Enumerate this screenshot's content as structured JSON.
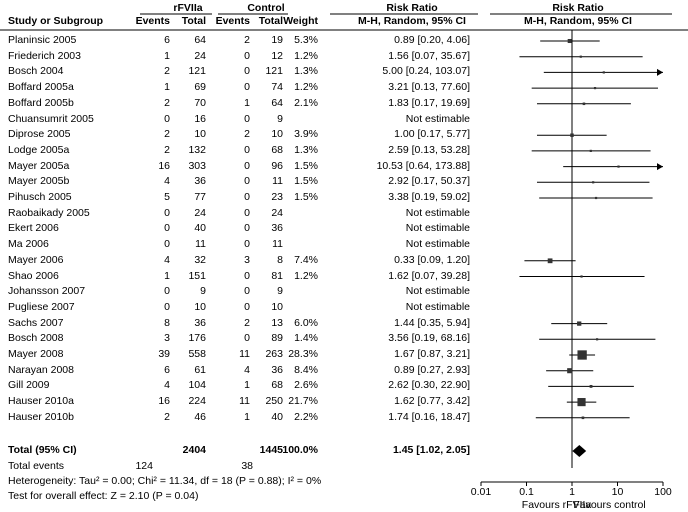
{
  "headers": {
    "group_rfviia": "rFVIIa",
    "group_control": "Control",
    "group_rr_left": "Risk Ratio",
    "group_rr_right": "Risk Ratio",
    "study": "Study or Subgroup",
    "events1": "Events",
    "total1": "Total",
    "events2": "Events",
    "total2": "Total",
    "weight": "Weight",
    "method_left": "M-H, Random, 95% CI",
    "method_right": "M-H, Random, 95% CI"
  },
  "studies": [
    {
      "name": "Planinsic 2005",
      "e1": "6",
      "t1": "64",
      "e2": "2",
      "t2": "19",
      "w": "5.3%",
      "ci": "0.89 [0.20, 4.06]",
      "rr": 0.89,
      "lo": 0.2,
      "hi": 4.06,
      "weight": 5.3
    },
    {
      "name": "Friederich 2003",
      "e1": "1",
      "t1": "24",
      "e2": "0",
      "t2": "12",
      "w": "1.2%",
      "ci": "1.56 [0.07, 35.67]",
      "rr": 1.56,
      "lo": 0.07,
      "hi": 35.67,
      "weight": 1.2
    },
    {
      "name": "Bosch 2004",
      "e1": "2",
      "t1": "121",
      "e2": "0",
      "t2": "121",
      "w": "1.3%",
      "ci": "5.00 [0.24, 103.07]",
      "rr": 5.0,
      "lo": 0.24,
      "hi": 103.07,
      "weight": 1.3
    },
    {
      "name": "Boffard 2005a",
      "e1": "1",
      "t1": "69",
      "e2": "0",
      "t2": "74",
      "w": "1.2%",
      "ci": "3.21 [0.13, 77.60]",
      "rr": 3.21,
      "lo": 0.13,
      "hi": 77.6,
      "weight": 1.2
    },
    {
      "name": "Boffard 2005b",
      "e1": "2",
      "t1": "70",
      "e2": "1",
      "t2": "64",
      "w": "2.1%",
      "ci": "1.83 [0.17, 19.69]",
      "rr": 1.83,
      "lo": 0.17,
      "hi": 19.69,
      "weight": 2.1
    },
    {
      "name": "Chuansumrit 2005",
      "e1": "0",
      "t1": "16",
      "e2": "0",
      "t2": "9",
      "w": "",
      "ci": "Not estimable",
      "rr": null,
      "lo": null,
      "hi": null,
      "weight": 0
    },
    {
      "name": "Diprose 2005",
      "e1": "2",
      "t1": "10",
      "e2": "2",
      "t2": "10",
      "w": "3.9%",
      "ci": "1.00 [0.17, 5.77]",
      "rr": 1.0,
      "lo": 0.17,
      "hi": 5.77,
      "weight": 3.9
    },
    {
      "name": "Lodge 2005a",
      "e1": "2",
      "t1": "132",
      "e2": "0",
      "t2": "68",
      "w": "1.3%",
      "ci": "2.59 [0.13, 53.28]",
      "rr": 2.59,
      "lo": 0.13,
      "hi": 53.28,
      "weight": 1.3
    },
    {
      "name": "Mayer 2005a",
      "e1": "16",
      "t1": "303",
      "e2": "0",
      "t2": "96",
      "w": "1.5%",
      "ci": "10.53 [0.64, 173.88]",
      "rr": 10.53,
      "lo": 0.64,
      "hi": 173.88,
      "weight": 1.5
    },
    {
      "name": "Mayer 2005b",
      "e1": "4",
      "t1": "36",
      "e2": "0",
      "t2": "11",
      "w": "1.5%",
      "ci": "2.92 [0.17, 50.37]",
      "rr": 2.92,
      "lo": 0.17,
      "hi": 50.37,
      "weight": 1.5
    },
    {
      "name": "Pihusch 2005",
      "e1": "5",
      "t1": "77",
      "e2": "0",
      "t2": "23",
      "w": "1.5%",
      "ci": "3.38 [0.19, 59.02]",
      "rr": 3.38,
      "lo": 0.19,
      "hi": 59.02,
      "weight": 1.5
    },
    {
      "name": "Raobaikady 2005",
      "e1": "0",
      "t1": "24",
      "e2": "0",
      "t2": "24",
      "w": "",
      "ci": "Not estimable",
      "rr": null,
      "lo": null,
      "hi": null,
      "weight": 0
    },
    {
      "name": "Ekert 2006",
      "e1": "0",
      "t1": "40",
      "e2": "0",
      "t2": "36",
      "w": "",
      "ci": "Not estimable",
      "rr": null,
      "lo": null,
      "hi": null,
      "weight": 0
    },
    {
      "name": "Ma 2006",
      "e1": "0",
      "t1": "11",
      "e2": "0",
      "t2": "11",
      "w": "",
      "ci": "Not estimable",
      "rr": null,
      "lo": null,
      "hi": null,
      "weight": 0
    },
    {
      "name": "Mayer 2006",
      "e1": "4",
      "t1": "32",
      "e2": "3",
      "t2": "8",
      "w": "7.4%",
      "ci": "0.33 [0.09, 1.20]",
      "rr": 0.33,
      "lo": 0.09,
      "hi": 1.2,
      "weight": 7.4
    },
    {
      "name": "Shao 2006",
      "e1": "1",
      "t1": "151",
      "e2": "0",
      "t2": "81",
      "w": "1.2%",
      "ci": "1.62 [0.07, 39.28]",
      "rr": 1.62,
      "lo": 0.07,
      "hi": 39.28,
      "weight": 1.2
    },
    {
      "name": "Johansson 2007",
      "e1": "0",
      "t1": "9",
      "e2": "0",
      "t2": "9",
      "w": "",
      "ci": "Not estimable",
      "rr": null,
      "lo": null,
      "hi": null,
      "weight": 0
    },
    {
      "name": "Pugliese 2007",
      "e1": "0",
      "t1": "10",
      "e2": "0",
      "t2": "10",
      "w": "",
      "ci": "Not estimable",
      "rr": null,
      "lo": null,
      "hi": null,
      "weight": 0
    },
    {
      "name": "Sachs 2007",
      "e1": "8",
      "t1": "36",
      "e2": "2",
      "t2": "13",
      "w": "6.0%",
      "ci": "1.44 [0.35, 5.94]",
      "rr": 1.44,
      "lo": 0.35,
      "hi": 5.94,
      "weight": 6.0
    },
    {
      "name": "Bosch 2008",
      "e1": "3",
      "t1": "176",
      "e2": "0",
      "t2": "89",
      "w": "1.4%",
      "ci": "3.56 [0.19, 68.16]",
      "rr": 3.56,
      "lo": 0.19,
      "hi": 68.16,
      "weight": 1.4
    },
    {
      "name": "Mayer 2008",
      "e1": "39",
      "t1": "558",
      "e2": "11",
      "t2": "263",
      "w": "28.3%",
      "ci": "1.67 [0.87, 3.21]",
      "rr": 1.67,
      "lo": 0.87,
      "hi": 3.21,
      "weight": 28.3
    },
    {
      "name": "Narayan 2008",
      "e1": "6",
      "t1": "61",
      "e2": "4",
      "t2": "36",
      "w": "8.4%",
      "ci": "0.89 [0.27, 2.93]",
      "rr": 0.89,
      "lo": 0.27,
      "hi": 2.93,
      "weight": 8.4
    },
    {
      "name": "Gill 2009",
      "e1": "4",
      "t1": "104",
      "e2": "1",
      "t2": "68",
      "w": "2.6%",
      "ci": "2.62 [0.30, 22.90]",
      "rr": 2.62,
      "lo": 0.3,
      "hi": 22.9,
      "weight": 2.6
    },
    {
      "name": "Hauser 2010a",
      "e1": "16",
      "t1": "224",
      "e2": "11",
      "t2": "250",
      "w": "21.7%",
      "ci": "1.62 [0.77, 3.42]",
      "rr": 1.62,
      "lo": 0.77,
      "hi": 3.42,
      "weight": 21.7
    },
    {
      "name": "Hauser 2010b",
      "e1": "2",
      "t1": "46",
      "e2": "1",
      "t2": "40",
      "w": "2.2%",
      "ci": "1.74 [0.16, 18.47]",
      "rr": 1.74,
      "lo": 0.16,
      "hi": 18.47,
      "weight": 2.2
    }
  ],
  "total": {
    "label": "Total (95% CI)",
    "t1": "2404",
    "t2": "1445",
    "w": "100.0%",
    "ci": "1.45 [1.02, 2.05]",
    "rr": 1.45,
    "lo": 1.02,
    "hi": 2.05
  },
  "total_events": {
    "label": "Total events",
    "e1": "124",
    "e2": "38"
  },
  "heterogeneity": "Heterogeneity: Tau² = 0.00; Chi² = 11.34, df = 18 (P = 0.88); I² = 0%",
  "overall_effect": "Test for overall effect: Z = 2.10 (P = 0.04)",
  "chart_data": {
    "type": "forest",
    "x_scale": "log",
    "xlim": [
      0.01,
      100
    ],
    "ticks": [
      "0.01",
      "0.1",
      "1",
      "10",
      "100"
    ],
    "tick_values": [
      0.01,
      0.1,
      1,
      10,
      100
    ],
    "favours_left": "Favours rFVIIa",
    "favours_right": "Favours control"
  }
}
